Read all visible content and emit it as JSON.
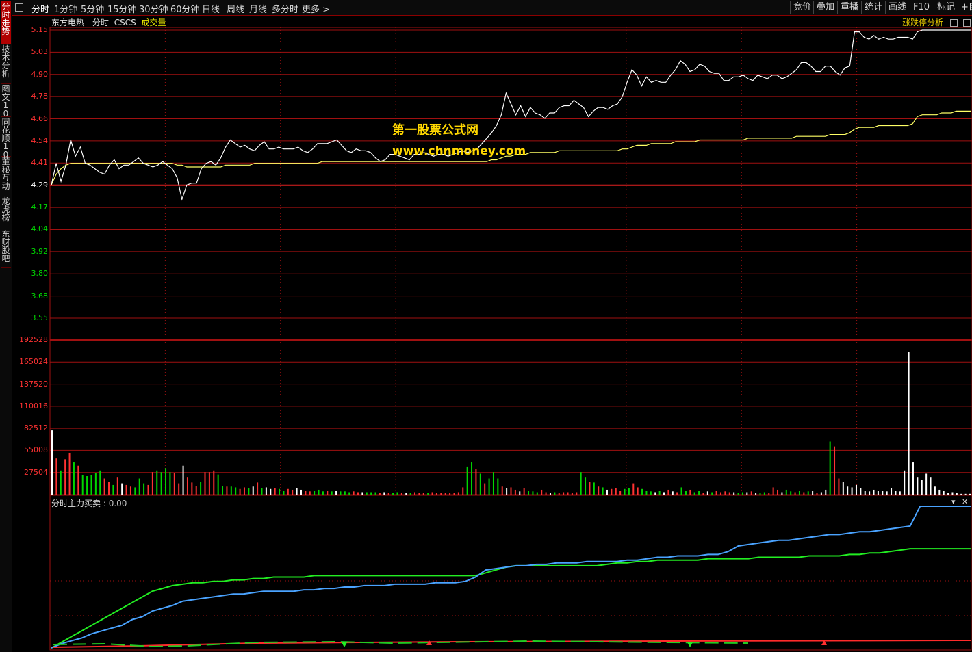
{
  "sidebar": {
    "tabs": [
      {
        "label": "分时走势",
        "active": true
      },
      {
        "label": "技术分析"
      },
      {
        "label": "图文10"
      },
      {
        "label": "同花顺10"
      },
      {
        "label": "董秘互动"
      },
      {
        "label": "龙虎榜"
      },
      {
        "label": "东财股吧"
      }
    ]
  },
  "toolbar": {
    "periods": [
      "分时",
      "1分钟",
      "5分钟",
      "15分钟",
      "30分钟",
      "60分钟",
      "日线",
      "周线",
      "月线",
      "多分时",
      "更多 >"
    ],
    "right_buttons": [
      "竞价",
      "叠加",
      "重播",
      "统计",
      "画线",
      "F10",
      "标记",
      "+自"
    ]
  },
  "subheader": {
    "stock_name": "东方电热",
    "mode": "分时",
    "indicator": "CSCS",
    "volume_label": "成交量",
    "limit_analysis": "涨跌停分析"
  },
  "price_axis": {
    "labels": [
      "5.15",
      "5.03",
      "4.90",
      "4.78",
      "4.66",
      "4.54",
      "4.41",
      "4.29",
      "4.17",
      "4.04",
      "3.92",
      "3.80",
      "3.68",
      "3.55"
    ],
    "prev_close": "4.29"
  },
  "volume_axis": {
    "labels": [
      "192528",
      "165024",
      "137520",
      "110016",
      "82512",
      "55008",
      "27504"
    ]
  },
  "indicator_panel": {
    "title": "分时主力买卖",
    "value": ": 0.00"
  },
  "watermark": {
    "line1": "第一股票公式网",
    "line2": "www.chnmoney.com"
  },
  "colors": {
    "up": "#ff3232",
    "down": "#00d800",
    "price_line": "#ffffff",
    "avg_line": "#ffff66",
    "main_buy": "#4aa3ff",
    "main_sell": "#22ee22",
    "grid": "#a01010"
  },
  "chart_data": {
    "type": "line",
    "series": [
      {
        "name": "price",
        "values": [
          4.29,
          4.41,
          4.31,
          4.4,
          4.54,
          4.45,
          4.5,
          4.41,
          4.4,
          4.38,
          4.36,
          4.35,
          4.4,
          4.43,
          4.38,
          4.4,
          4.4,
          4.42,
          4.44,
          4.41,
          4.4,
          4.39,
          4.4,
          4.42,
          4.4,
          4.38,
          4.33,
          4.21,
          4.29,
          4.3,
          4.3,
          4.38,
          4.41,
          4.42,
          4.4,
          4.44,
          4.5,
          4.54,
          4.52,
          4.5,
          4.51,
          4.49,
          4.48,
          4.51,
          4.53,
          4.49,
          4.49,
          4.5,
          4.49,
          4.49,
          4.49,
          4.5,
          4.48,
          4.47,
          4.49,
          4.52,
          4.52,
          4.52,
          4.53,
          4.54,
          4.51,
          4.48,
          4.47,
          4.49,
          4.48,
          4.48,
          4.47,
          4.44,
          4.42,
          4.43,
          4.46,
          4.46,
          4.45,
          4.44,
          4.43,
          4.46,
          4.46,
          4.47,
          4.46,
          4.45,
          4.46,
          4.46,
          4.45,
          4.46,
          4.47,
          4.48,
          4.47,
          4.48,
          4.49,
          4.52,
          4.55,
          4.58,
          4.62,
          4.68,
          4.8,
          4.74,
          4.68,
          4.73,
          4.67,
          4.72,
          4.69,
          4.68,
          4.66,
          4.69,
          4.69,
          4.72,
          4.73,
          4.73,
          4.76,
          4.74,
          4.72,
          4.67,
          4.7,
          4.72,
          4.72,
          4.71,
          4.73,
          4.74,
          4.78,
          4.86,
          4.93,
          4.9,
          4.84,
          4.89,
          4.86,
          4.87,
          4.86,
          4.86,
          4.9,
          4.93,
          4.98,
          4.96,
          4.92,
          4.93,
          4.96,
          4.95,
          4.92,
          4.91,
          4.91,
          4.87,
          4.87,
          4.89,
          4.89,
          4.9,
          4.88,
          4.87,
          4.9,
          4.89,
          4.88,
          4.9,
          4.9,
          4.88,
          4.89,
          4.91,
          4.93,
          4.97,
          4.97,
          4.95,
          4.92,
          4.92,
          4.95,
          4.95,
          4.92,
          4.9,
          4.94,
          4.95,
          5.14,
          5.14,
          5.11,
          5.1,
          5.12,
          5.1,
          5.11,
          5.1,
          5.1,
          5.11,
          5.11,
          5.11,
          5.1,
          5.14,
          5.15,
          5.15,
          5.15,
          5.15,
          5.15,
          5.15,
          5.15,
          5.15,
          5.15,
          5.15,
          5.15
        ]
      },
      {
        "name": "avg_price",
        "values": [
          4.29,
          4.35,
          4.38,
          4.4,
          4.41,
          4.41,
          4.41,
          4.41,
          4.41,
          4.41,
          4.41,
          4.41,
          4.41,
          4.41,
          4.41,
          4.41,
          4.41,
          4.41,
          4.41,
          4.41,
          4.41,
          4.41,
          4.41,
          4.41,
          4.41,
          4.41,
          4.4,
          4.4,
          4.39,
          4.39,
          4.39,
          4.39,
          4.39,
          4.39,
          4.39,
          4.39,
          4.4,
          4.4,
          4.4,
          4.4,
          4.4,
          4.4,
          4.41,
          4.41,
          4.41,
          4.41,
          4.41,
          4.41,
          4.41,
          4.41,
          4.41,
          4.41,
          4.41,
          4.41,
          4.41,
          4.41,
          4.42,
          4.42,
          4.42,
          4.42,
          4.42,
          4.42,
          4.42,
          4.42,
          4.42,
          4.42,
          4.42,
          4.42,
          4.42,
          4.42,
          4.42,
          4.42,
          4.42,
          4.42,
          4.42,
          4.42,
          4.42,
          4.42,
          4.42,
          4.42,
          4.42,
          4.42,
          4.42,
          4.42,
          4.42,
          4.42,
          4.42,
          4.42,
          4.42,
          4.42,
          4.42,
          4.43,
          4.43,
          4.44,
          4.45,
          4.45,
          4.46,
          4.46,
          4.46,
          4.47,
          4.47,
          4.47,
          4.47,
          4.47,
          4.47,
          4.48,
          4.48,
          4.48,
          4.48,
          4.48,
          4.48,
          4.48,
          4.48,
          4.48,
          4.48,
          4.48,
          4.48,
          4.48,
          4.49,
          4.49,
          4.5,
          4.51,
          4.51,
          4.51,
          4.52,
          4.52,
          4.52,
          4.52,
          4.52,
          4.53,
          4.53,
          4.53,
          4.53,
          4.53,
          4.54,
          4.54,
          4.54,
          4.54,
          4.54,
          4.54,
          4.54,
          4.54,
          4.54,
          4.54,
          4.55,
          4.55,
          4.55,
          4.55,
          4.55,
          4.55,
          4.55,
          4.55,
          4.55,
          4.55,
          4.56,
          4.56,
          4.56,
          4.56,
          4.56,
          4.56,
          4.56,
          4.57,
          4.57,
          4.57,
          4.57,
          4.58,
          4.6,
          4.61,
          4.61,
          4.61,
          4.61,
          4.62,
          4.62,
          4.62,
          4.62,
          4.62,
          4.62,
          4.62,
          4.63,
          4.67,
          4.68,
          4.68,
          4.68,
          4.68,
          4.69,
          4.69,
          4.69,
          4.7,
          4.7,
          4.7,
          4.7
        ]
      },
      {
        "name": "volume",
        "values": [
          80000,
          45000,
          30000,
          44000,
          52000,
          40000,
          36000,
          24000,
          23000,
          24000,
          27000,
          30000,
          20000,
          16000,
          12000,
          22000,
          14000,
          12000,
          10000,
          9000,
          20000,
          14000,
          12000,
          28000,
          30000,
          28000,
          33000,
          28000,
          27000,
          14000,
          36000,
          22000,
          15000,
          11000,
          16000,
          28000,
          28000,
          30000,
          25000,
          11000,
          10000,
          10000,
          9000,
          7000,
          9000,
          8000,
          10000,
          15000,
          8000,
          9000,
          7000,
          8000,
          7000,
          5000,
          7000,
          6000,
          8000,
          6000,
          5000,
          4000,
          5000,
          6000,
          4000,
          5000,
          4000,
          5000,
          4000,
          4000,
          3000,
          4000,
          3000,
          3000,
          3000,
          3000,
          3000,
          2000,
          3000,
          2000,
          2000,
          3000,
          2000,
          2000,
          2000,
          3000,
          2000,
          2000,
          2000,
          3000,
          2000,
          2000,
          2000,
          2000,
          2000,
          3000,
          9000,
          35000,
          40000,
          32000,
          26000,
          14000,
          20000,
          28000,
          20000,
          10000,
          8000,
          9000,
          6000,
          4000,
          8000,
          5000,
          4000,
          3000,
          6000,
          3000,
          2000,
          3000,
          2000,
          3000,
          3000,
          2000,
          3000,
          28000,
          22000,
          16000,
          15000,
          10000,
          9000,
          6000,
          7000,
          8000,
          5000,
          7000,
          8000,
          14000,
          9000,
          7000,
          5000,
          4000,
          3000,
          5000,
          3000,
          6000,
          4000,
          3000,
          9000,
          5000,
          6000,
          3000,
          5000,
          2000,
          4000,
          3000,
          5000,
          3000,
          4000,
          3000,
          3000,
          2000,
          3000,
          3000,
          4000,
          2000,
          2000,
          3000,
          2000,
          9000,
          6000,
          3000,
          6000,
          4000,
          3000,
          5000,
          3000,
          4000,
          5000,
          2000,
          3000,
          6000,
          66000,
          60000,
          20000,
          16000,
          10000,
          9000,
          12000,
          8000,
          5000,
          4000,
          6000,
          5000,
          5000,
          4000,
          8000,
          5000,
          4000,
          30000,
          178000,
          40000,
          22000,
          18000,
          26000,
          22000,
          10000,
          6000,
          5000,
          2000,
          3000,
          2000,
          1000,
          1000,
          1000
        ]
      },
      {
        "name": "main_buy",
        "values": [
          0,
          0.03,
          0.05,
          0.07,
          0.1,
          0.12,
          0.14,
          0.16,
          0.2,
          0.22,
          0.26,
          0.28,
          0.3,
          0.33,
          0.34,
          0.35,
          0.36,
          0.37,
          0.38,
          0.38,
          0.39,
          0.4,
          0.4,
          0.4,
          0.4,
          0.41,
          0.41,
          0.42,
          0.42,
          0.43,
          0.43,
          0.44,
          0.44,
          0.44,
          0.45,
          0.45,
          0.45,
          0.45,
          0.46,
          0.46,
          0.46,
          0.47,
          0.5,
          0.55,
          0.56,
          0.57,
          0.58,
          0.58,
          0.59,
          0.59,
          0.6,
          0.6,
          0.6,
          0.61,
          0.61,
          0.61,
          0.61,
          0.62,
          0.62,
          0.63,
          0.64,
          0.64,
          0.65,
          0.65,
          0.65,
          0.66,
          0.66,
          0.68,
          0.72,
          0.73,
          0.74,
          0.75,
          0.76,
          0.76,
          0.77,
          0.78,
          0.79,
          0.8,
          0.8,
          0.81,
          0.82,
          0.82,
          0.83,
          0.84,
          0.85,
          0.86,
          1.0,
          1.0,
          1.0,
          1.0,
          1.0,
          1.0
        ]
      },
      {
        "name": "main_sell",
        "values": [
          0,
          0.04,
          0.08,
          0.12,
          0.16,
          0.2,
          0.24,
          0.28,
          0.32,
          0.36,
          0.4,
          0.42,
          0.44,
          0.45,
          0.46,
          0.46,
          0.47,
          0.47,
          0.48,
          0.48,
          0.49,
          0.49,
          0.5,
          0.5,
          0.5,
          0.5,
          0.51,
          0.51,
          0.51,
          0.51,
          0.51,
          0.51,
          0.51,
          0.51,
          0.51,
          0.51,
          0.51,
          0.51,
          0.51,
          0.51,
          0.51,
          0.51,
          0.51,
          0.53,
          0.55,
          0.57,
          0.58,
          0.58,
          0.58,
          0.58,
          0.58,
          0.58,
          0.58,
          0.58,
          0.58,
          0.59,
          0.6,
          0.6,
          0.61,
          0.61,
          0.62,
          0.62,
          0.62,
          0.62,
          0.62,
          0.63,
          0.63,
          0.63,
          0.63,
          0.63,
          0.64,
          0.64,
          0.64,
          0.64,
          0.64,
          0.65,
          0.65,
          0.65,
          0.65,
          0.66,
          0.66,
          0.67,
          0.67,
          0.68,
          0.69,
          0.7,
          0.7,
          0.7,
          0.7,
          0.7,
          0.7,
          0.7
        ]
      }
    ],
    "ylim_price": [
      3.55,
      5.15
    ],
    "ylim_volume": [
      0,
      192528
    ],
    "grid": true
  }
}
